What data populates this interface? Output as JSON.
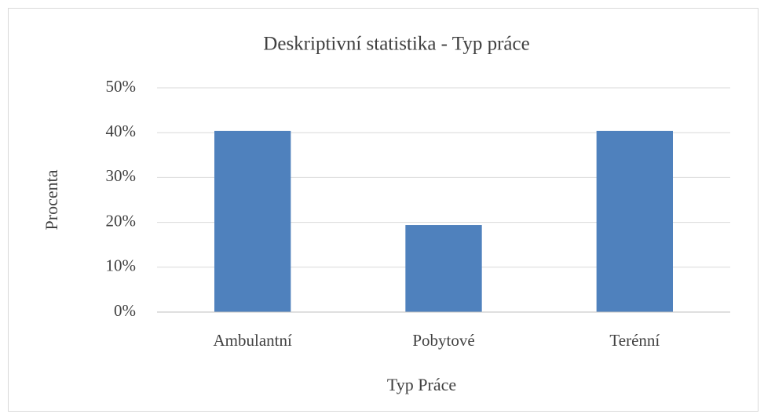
{
  "chart_data": {
    "type": "bar",
    "title": "Deskriptivní statistika - Typ práce",
    "x_label": "Typ Práce",
    "y_label": "Procenta",
    "categories": [
      "Ambulantní",
      "Pobytové",
      "Terénní"
    ],
    "values": [
      40.4,
      19.4,
      40.4
    ],
    "color": "#4f81bd",
    "ylim": [
      0,
      50
    ],
    "yticks": [
      {
        "value": 0,
        "label": "0%"
      },
      {
        "value": 10,
        "label": "10%"
      },
      {
        "value": 20,
        "label": "20%"
      },
      {
        "value": 30,
        "label": "30%"
      },
      {
        "value": 40,
        "label": "40%"
      },
      {
        "value": 50,
        "label": "50%"
      }
    ],
    "grid": true
  }
}
